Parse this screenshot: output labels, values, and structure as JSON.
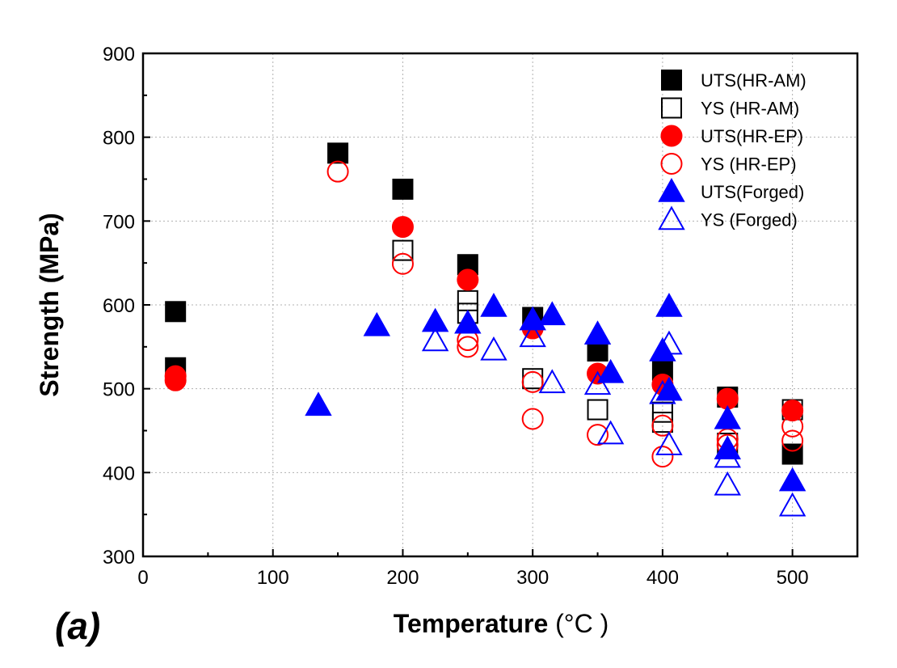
{
  "chart_data": {
    "type": "scatter",
    "title": "",
    "panel_label": "(a)",
    "xlabel": "Temperature",
    "xlabel_unit": "(°C )",
    "ylabel": "Strength (MPa)",
    "xlim": [
      0,
      550
    ],
    "ylim": [
      300,
      900
    ],
    "xticks": [
      0,
      100,
      200,
      300,
      400,
      500
    ],
    "yticks": [
      300,
      400,
      500,
      600,
      700,
      800,
      900
    ],
    "grid": true,
    "legend_position": "top-right",
    "series": [
      {
        "name": "UTS(HR-AM)",
        "marker": "square",
        "filled": true,
        "color": "#000000",
        "points": [
          [
            25,
            592
          ],
          [
            25,
            525
          ],
          [
            150,
            781
          ],
          [
            200,
            738
          ],
          [
            250,
            648
          ],
          [
            300,
            585
          ],
          [
            350,
            545
          ],
          [
            400,
            522
          ],
          [
            450,
            490
          ],
          [
            500,
            422
          ]
        ]
      },
      {
        "name": "YS   (HR-AM)",
        "marker": "square",
        "filled": false,
        "color": "#000000",
        "points": [
          [
            200,
            665
          ],
          [
            250,
            605
          ],
          [
            250,
            590
          ],
          [
            300,
            512
          ],
          [
            350,
            475
          ],
          [
            400,
            472
          ],
          [
            400,
            460
          ],
          [
            450,
            435
          ],
          [
            500,
            475
          ]
        ]
      },
      {
        "name": "UTS(HR-EP)",
        "marker": "circle",
        "filled": true,
        "color": "#ff0000",
        "points": [
          [
            25,
            515
          ],
          [
            25,
            510
          ],
          [
            200,
            693
          ],
          [
            250,
            630
          ],
          [
            300,
            572
          ],
          [
            350,
            518
          ],
          [
            400,
            505
          ],
          [
            450,
            488
          ],
          [
            500,
            474
          ]
        ]
      },
      {
        "name": "YS   (HR-EP)",
        "marker": "circle",
        "filled": false,
        "color": "#ff0000",
        "points": [
          [
            150,
            759
          ],
          [
            200,
            649
          ],
          [
            250,
            550
          ],
          [
            250,
            558
          ],
          [
            300,
            508
          ],
          [
            300,
            464
          ],
          [
            350,
            445
          ],
          [
            400,
            456
          ],
          [
            400,
            419
          ],
          [
            450,
            433
          ],
          [
            450,
            440
          ],
          [
            500,
            455
          ],
          [
            500,
            438
          ]
        ]
      },
      {
        "name": "UTS(Forged)",
        "marker": "triangle",
        "filled": true,
        "color": "#0000ff",
        "points": [
          [
            135,
            480
          ],
          [
            180,
            575
          ],
          [
            225,
            580
          ],
          [
            250,
            578
          ],
          [
            270,
            598
          ],
          [
            300,
            582
          ],
          [
            315,
            588
          ],
          [
            350,
            565
          ],
          [
            360,
            519
          ],
          [
            400,
            545
          ],
          [
            405,
            598
          ],
          [
            405,
            498
          ],
          [
            450,
            464
          ],
          [
            450,
            428
          ],
          [
            500,
            390
          ]
        ]
      },
      {
        "name": "YS   (Forged)",
        "marker": "triangle",
        "filled": false,
        "color": "#0000ff",
        "points": [
          [
            225,
            557
          ],
          [
            270,
            546
          ],
          [
            300,
            562
          ],
          [
            315,
            507
          ],
          [
            350,
            505
          ],
          [
            360,
            446
          ],
          [
            400,
            494
          ],
          [
            405,
            553
          ],
          [
            405,
            433
          ],
          [
            450,
            418
          ],
          [
            450,
            385
          ],
          [
            500,
            360
          ]
        ]
      }
    ]
  }
}
